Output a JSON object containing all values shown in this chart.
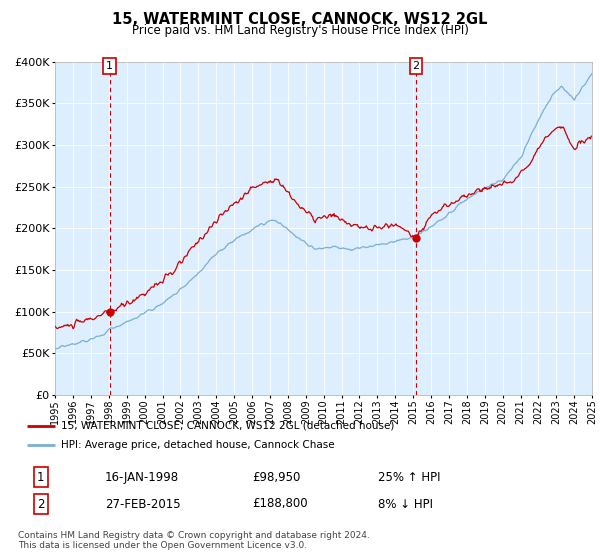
{
  "title": "15, WATERMINT CLOSE, CANNOCK, WS12 2GL",
  "subtitle": "Price paid vs. HM Land Registry's House Price Index (HPI)",
  "legend_line1": "15, WATERMINT CLOSE, CANNOCK, WS12 2GL (detached house)",
  "legend_line2": "HPI: Average price, detached house, Cannock Chase",
  "annotation1_label": "1",
  "annotation1_date": "16-JAN-1998",
  "annotation1_price": "£98,950",
  "annotation1_hpi": "25% ↑ HPI",
  "annotation2_label": "2",
  "annotation2_date": "27-FEB-2015",
  "annotation2_price": "£188,800",
  "annotation2_hpi": "8% ↓ HPI",
  "footer": "Contains HM Land Registry data © Crown copyright and database right 2024.\nThis data is licensed under the Open Government Licence v3.0.",
  "sale1_year": 1998.04,
  "sale1_value": 98950,
  "sale2_year": 2015.15,
  "sale2_value": 188800,
  "ylim": [
    0,
    400000
  ],
  "yticks": [
    0,
    50000,
    100000,
    150000,
    200000,
    250000,
    300000,
    350000,
    400000
  ],
  "xstart": 1995,
  "xend": 2025,
  "red_color": "#cc0000",
  "blue_color": "#7ab0d4",
  "dashed_color": "#cc0000",
  "background_plot": "#ddeeff",
  "background_fig": "#ffffff",
  "grid_color": "#ffffff"
}
